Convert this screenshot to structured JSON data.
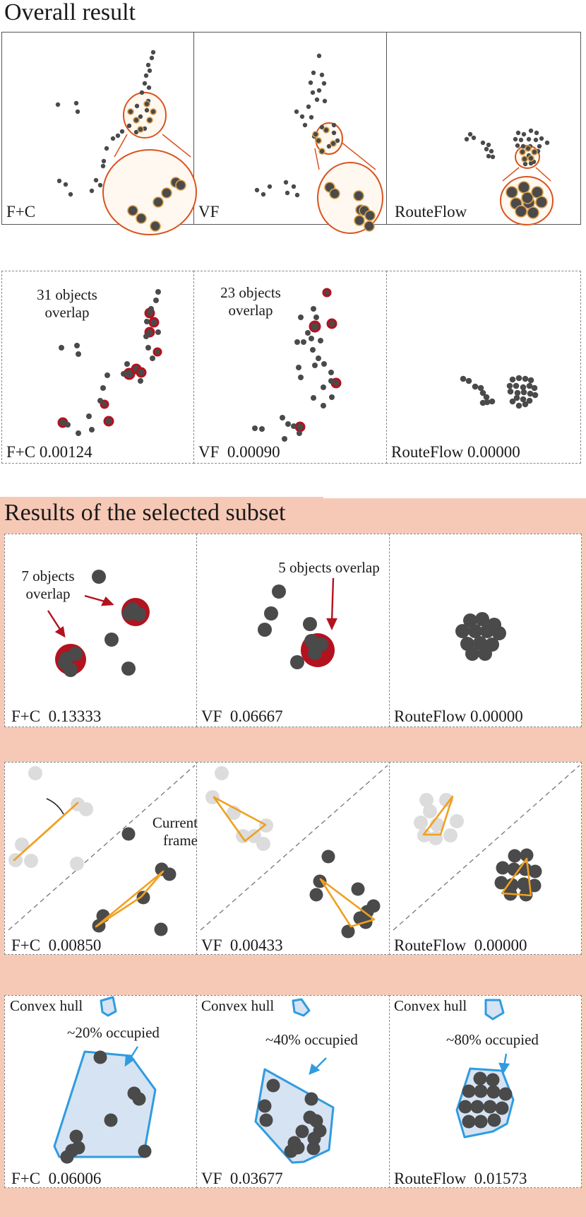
{
  "titles": {
    "overall": "Overall result",
    "selected": "Results of the selected subset"
  },
  "row1": [
    "F+C",
    "VF",
    "RouteFlow"
  ],
  "row2": {
    "labels": [
      "F+C 0.00124",
      "VF  0.00090",
      "RouteFlow 0.00000"
    ],
    "ann_fc": "31 objects\noverlap",
    "ann_vf": "23 objects\noverlap"
  },
  "row3": {
    "labels": [
      "F+C  0.13333",
      "VF  0.06667",
      "RouteFlow 0.00000"
    ],
    "ann_fc": "7 objects\noverlap",
    "ann_vf": "5 objects overlap"
  },
  "row4": {
    "labels": [
      "F+C  0.00850",
      "VF  0.00433",
      "RouteFlow  0.00000"
    ],
    "current_frame": "Current\nframe"
  },
  "row5": {
    "labels": [
      "F+C  0.06006",
      "VF  0.03677",
      "RouteFlow  0.01573"
    ],
    "hull": "Convex hull",
    "occ": [
      "~20% occupied",
      "~40% occupied",
      "~80% occupied"
    ]
  },
  "colors": {
    "dot": "#4a4a4a",
    "light_dot": "#d9d9d9",
    "overlap": "#b3121f",
    "triangle": "#f0a020",
    "hull": "#2f9be0",
    "hull_fill": "#d6e3f3",
    "peach": "#f6c9b6",
    "magnifier": "#d9531e"
  }
}
